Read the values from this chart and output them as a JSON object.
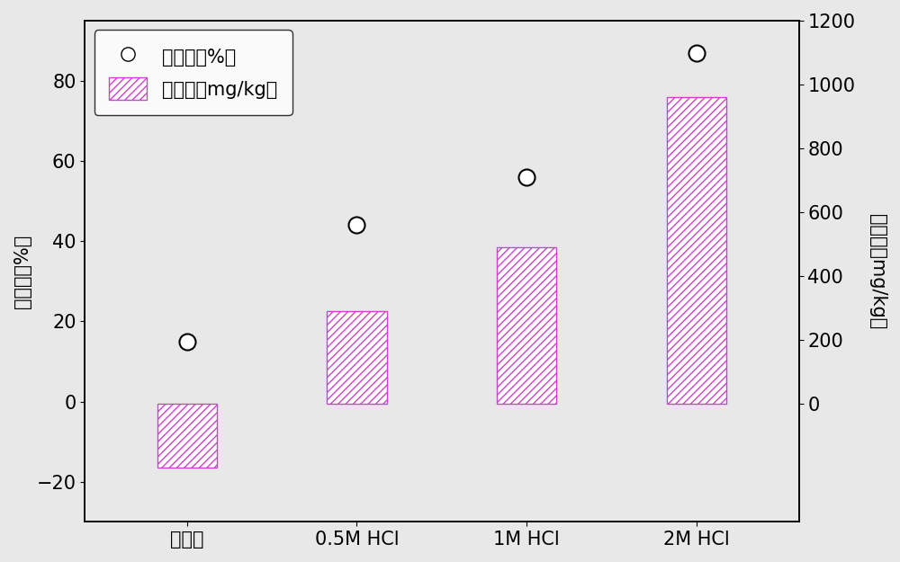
{
  "categories": [
    "活化前",
    "0.5M HCl",
    "1M HCl",
    "2M HCl"
  ],
  "removal_rate": [
    15,
    44,
    56,
    87
  ],
  "adsorption": [
    -200,
    290,
    490,
    960
  ],
  "left_ylim": [
    -30,
    95
  ],
  "left_yticks": [
    -20,
    0,
    20,
    40,
    60,
    80
  ],
  "right_ylim": [
    -371,
    1200
  ],
  "right_yticks": [
    0,
    200,
    400,
    600,
    800,
    1000,
    1200
  ],
  "ylabel_left": "去除率（%）",
  "ylabel_right": "吸附量（mg/kg）",
  "legend_circle": "去除率（%）",
  "legend_bar": "吸附量（mg/kg）",
  "bar_facecolor": "#ffffff",
  "bar_hatch": "////",
  "bar_hatch_color": "#cc44cc",
  "bar_edgecolor": "#cc44cc",
  "circle_facecolor": "white",
  "circle_edgecolor": "black",
  "background_color": "#e8e8e8",
  "plot_bg_color": "#e8e8e8",
  "font_size": 15,
  "bar_width": 0.35
}
